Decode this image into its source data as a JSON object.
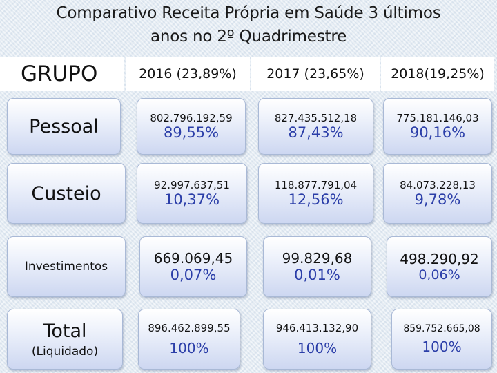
{
  "title": {
    "line1": "Comparativo Receita Própria em Saúde 3 últimos",
    "line2": "anos no  2º Quadrimestre"
  },
  "header": {
    "group_label": "GRUPO",
    "years": [
      "2016 (23,89%)",
      "2017 (23,65%)",
      "2018(19,25%)"
    ]
  },
  "rows": [
    {
      "label": "Pessoal",
      "values": [
        {
          "amount": "802.796.192,59",
          "pct": "89,55%"
        },
        {
          "amount": "827.435.512,18",
          "pct": "87,43%"
        },
        {
          "amount": "775.181.146,03",
          "pct": "90,16%"
        }
      ]
    },
    {
      "label": "Custeio",
      "values": [
        {
          "amount": "92.997.637,51",
          "pct": "10,37%"
        },
        {
          "amount": "118.877.791,04",
          "pct": "12,56%"
        },
        {
          "amount": "84.073.228,13",
          "pct": "9,78%"
        }
      ]
    },
    {
      "label": "Investimentos",
      "values": [
        {
          "amount": "669.069,45",
          "pct": "0,07%"
        },
        {
          "amount": "99.829,68",
          "pct": "0,01%"
        },
        {
          "amount": "498.290,92",
          "pct": "0,06%"
        }
      ]
    },
    {
      "label": "Total",
      "sublabel": "(Liquidado)",
      "values": [
        {
          "amount": "896.462.899,55",
          "pct": "100%"
        },
        {
          "amount": "946.413.132,90",
          "pct": "100%"
        },
        {
          "amount": "859.752.665,08",
          "pct": "100%"
        }
      ]
    }
  ]
}
